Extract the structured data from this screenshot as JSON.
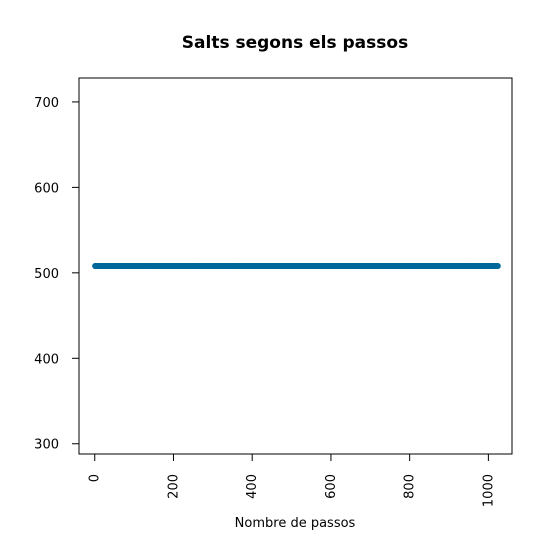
{
  "chart_data": {
    "type": "scatter",
    "title": "Salts segons els passos",
    "xlabel": "Nombre de passos",
    "ylabel": "",
    "xlim": [
      -40,
      1060
    ],
    "ylim": [
      288,
      728
    ],
    "xticks": [
      0,
      200,
      400,
      600,
      800,
      1000
    ],
    "xtick_labels": [
      "0",
      "200",
      "400",
      "600",
      "800",
      "1000"
    ],
    "yticks": [
      300,
      400,
      500,
      600,
      700
    ],
    "ytick_labels": [
      "300",
      "400",
      "500",
      "600",
      "700"
    ],
    "grid": false,
    "series": [
      {
        "x_start": 1,
        "x_end": 1024,
        "x_step": 1,
        "y_constant": 508,
        "color": "#00689a"
      }
    ]
  }
}
